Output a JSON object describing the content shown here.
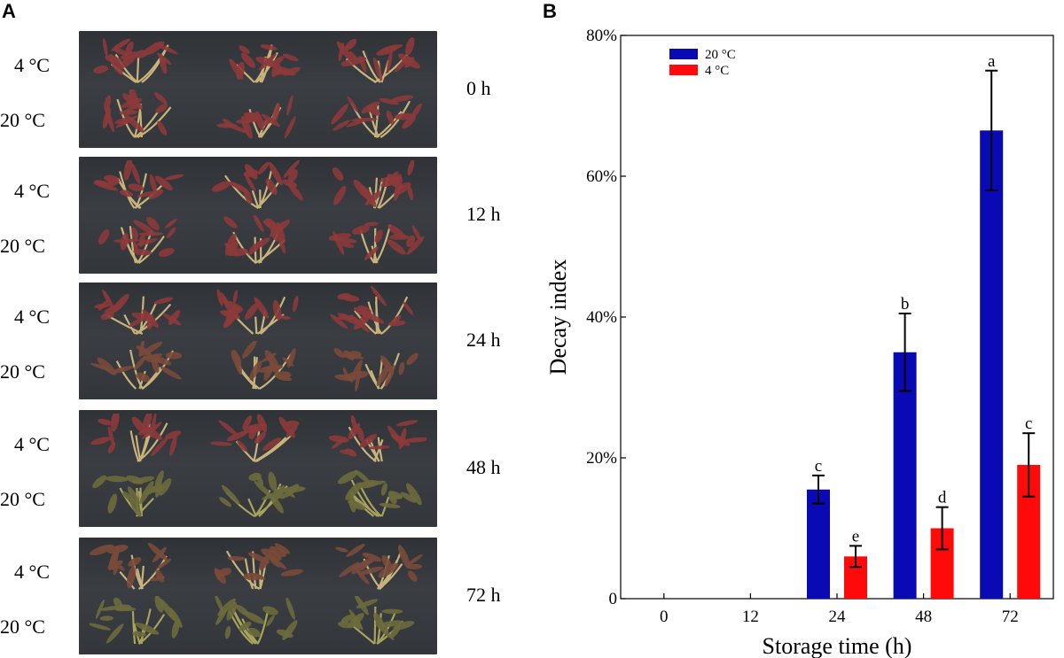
{
  "panels": {
    "a_letter": "A",
    "b_letter": "B"
  },
  "photo_panel": {
    "rows": [
      {
        "time": "0 h",
        "top_label": "4 °C",
        "bottom_label": "20 °C",
        "top_state": "fresh",
        "bottom_state": "fresh"
      },
      {
        "time": "12 h",
        "top_label": "4 °C",
        "bottom_label": "20 °C",
        "top_state": "fresh",
        "bottom_state": "fresh"
      },
      {
        "time": "24 h",
        "top_label": "4 °C",
        "bottom_label": "20 °C",
        "top_state": "fresh",
        "bottom_state": "slightly-wilted"
      },
      {
        "time": "48 h",
        "top_label": "4 °C",
        "bottom_label": "20 °C",
        "top_state": "fresh",
        "bottom_state": "decayed"
      },
      {
        "time": "72 h",
        "top_label": "4 °C",
        "bottom_label": "20 °C",
        "top_state": "slightly-wilted",
        "bottom_state": "decayed"
      }
    ]
  },
  "colors": {
    "series_20": "#0a0ab4",
    "series_4": "#ff0a0a",
    "fresh_leaf": "#8c3a3a",
    "fresh_stem": "#c9b37a",
    "decayed_leaf": "#6b6a3c",
    "photo_bg": "#35383d"
  },
  "chart_data": {
    "type": "bar",
    "title": "",
    "xlabel": "Storage time (h)",
    "ylabel": "Decay index",
    "categories": [
      "0",
      "12",
      "24",
      "48",
      "72"
    ],
    "ylim": [
      0,
      80
    ],
    "yticks": [
      0,
      20,
      40,
      60,
      80
    ],
    "ytick_labels": [
      "0",
      "20%",
      "40%",
      "60%",
      "80%"
    ],
    "legend_position": "top-left",
    "series": [
      {
        "name": "20 °C",
        "color": "#0a0ab4",
        "values": [
          0,
          0,
          15.5,
          35,
          66.5
        ],
        "errors": [
          0,
          0,
          2,
          5.5,
          8.5
        ],
        "letters": [
          "",
          "",
          "c",
          "b",
          "a"
        ]
      },
      {
        "name": "4 °C",
        "color": "#ff0a0a",
        "values": [
          0,
          0,
          6,
          10,
          19
        ],
        "errors": [
          0,
          0,
          1.5,
          3,
          4.5
        ],
        "letters": [
          "",
          "",
          "e",
          "d",
          "c"
        ]
      }
    ]
  }
}
